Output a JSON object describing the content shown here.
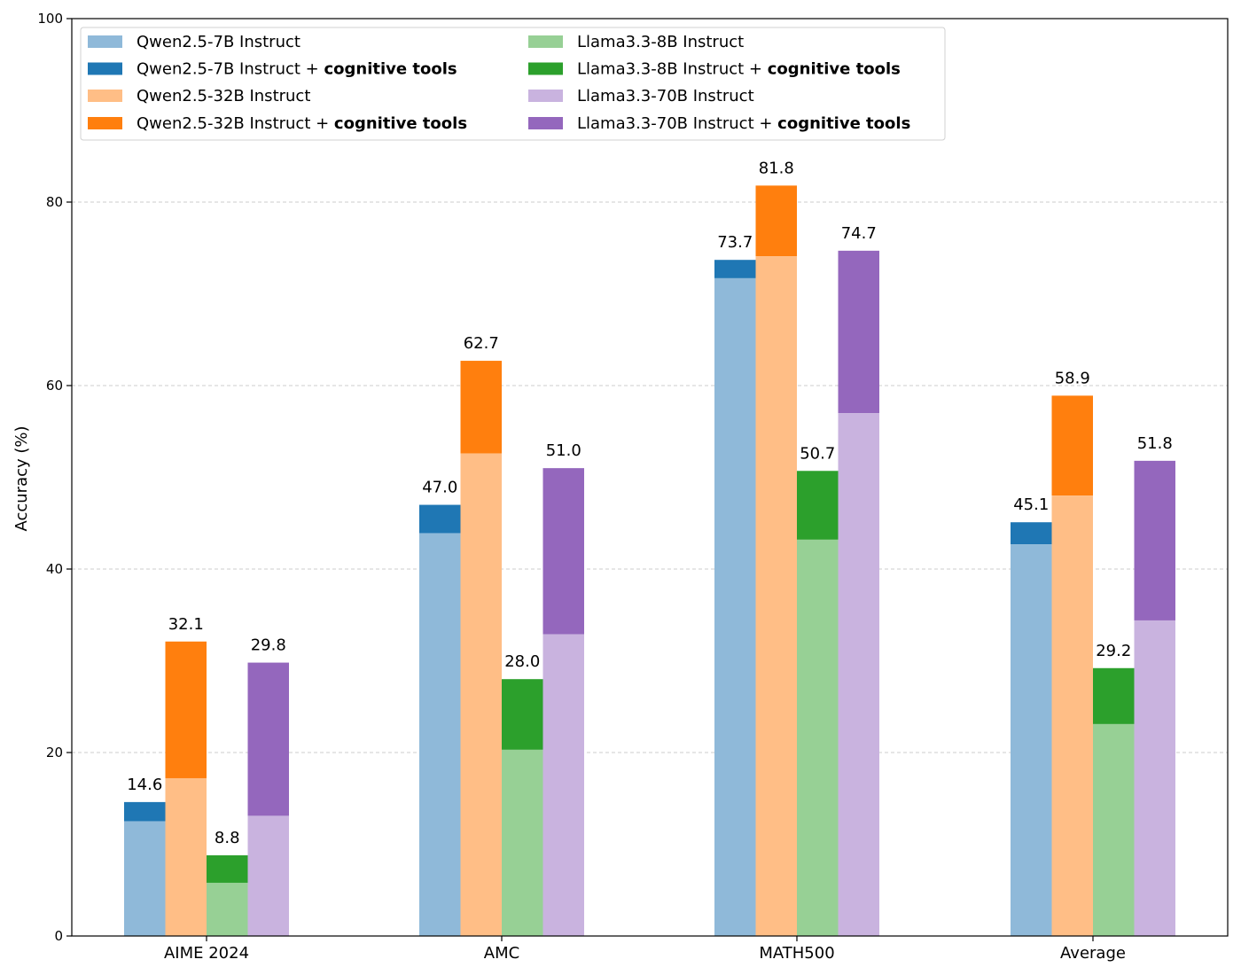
{
  "chart_data": {
    "type": "bar",
    "subtype": "grouped-stacked",
    "title": "",
    "xlabel": "",
    "ylabel": "Accuracy (%)",
    "ylim": [
      0,
      100
    ],
    "yticks": [
      0,
      20,
      40,
      60,
      80,
      100
    ],
    "grid": "y-dashed",
    "legend_position": "top-left",
    "categories": [
      "AIME 2024",
      "AMC",
      "MATH500",
      "Average"
    ],
    "models": [
      {
        "name": "Qwen2.5-7B Instruct",
        "base_label": "Qwen2.5-7B Instruct",
        "tools_label_prefix": "Qwen2.5-7B Instruct + ",
        "tools_label_bold": "cognitive tools",
        "base_color": "#8fb9d9",
        "tools_color": "#1f77b4",
        "base_values": [
          12.5,
          43.9,
          71.7,
          42.7
        ],
        "tools_values": [
          14.6,
          47.0,
          73.7,
          45.1
        ],
        "data_labels": [
          "14.6",
          "47.0",
          "73.7",
          "45.1"
        ]
      },
      {
        "name": "Qwen2.5-32B Instruct",
        "base_label": "Qwen2.5-32B Instruct",
        "tools_label_prefix": "Qwen2.5-32B Instruct + ",
        "tools_label_bold": "cognitive tools",
        "base_color": "#ffbe86",
        "tools_color": "#ff7f0e",
        "base_values": [
          17.2,
          52.6,
          74.1,
          48.0
        ],
        "tools_values": [
          32.1,
          62.7,
          81.8,
          58.9
        ],
        "data_labels": [
          "32.1",
          "62.7",
          "81.8",
          "58.9"
        ]
      },
      {
        "name": "Llama3.3-8B Instruct",
        "base_label": "Llama3.3-8B Instruct",
        "tools_label_prefix": "Llama3.3-8B Instruct + ",
        "tools_label_bold": "cognitive tools",
        "base_color": "#97d095",
        "tools_color": "#2ca02c",
        "base_values": [
          5.8,
          20.3,
          43.2,
          23.1
        ],
        "tools_values": [
          8.8,
          28.0,
          50.7,
          29.2
        ],
        "data_labels": [
          "8.8",
          "28.0",
          "50.7",
          "29.2"
        ]
      },
      {
        "name": "Llama3.3-70B Instruct",
        "base_label": "Llama3.3-70B Instruct",
        "tools_label_prefix": "Llama3.3-70B Instruct + ",
        "tools_label_bold": "cognitive tools",
        "base_color": "#c9b3df",
        "tools_color": "#9467bd",
        "base_values": [
          13.1,
          32.9,
          57.0,
          34.4
        ],
        "tools_values": [
          29.8,
          51.0,
          74.7,
          51.8
        ],
        "data_labels": [
          "29.8",
          "51.0",
          "74.7",
          "51.8"
        ]
      }
    ]
  }
}
